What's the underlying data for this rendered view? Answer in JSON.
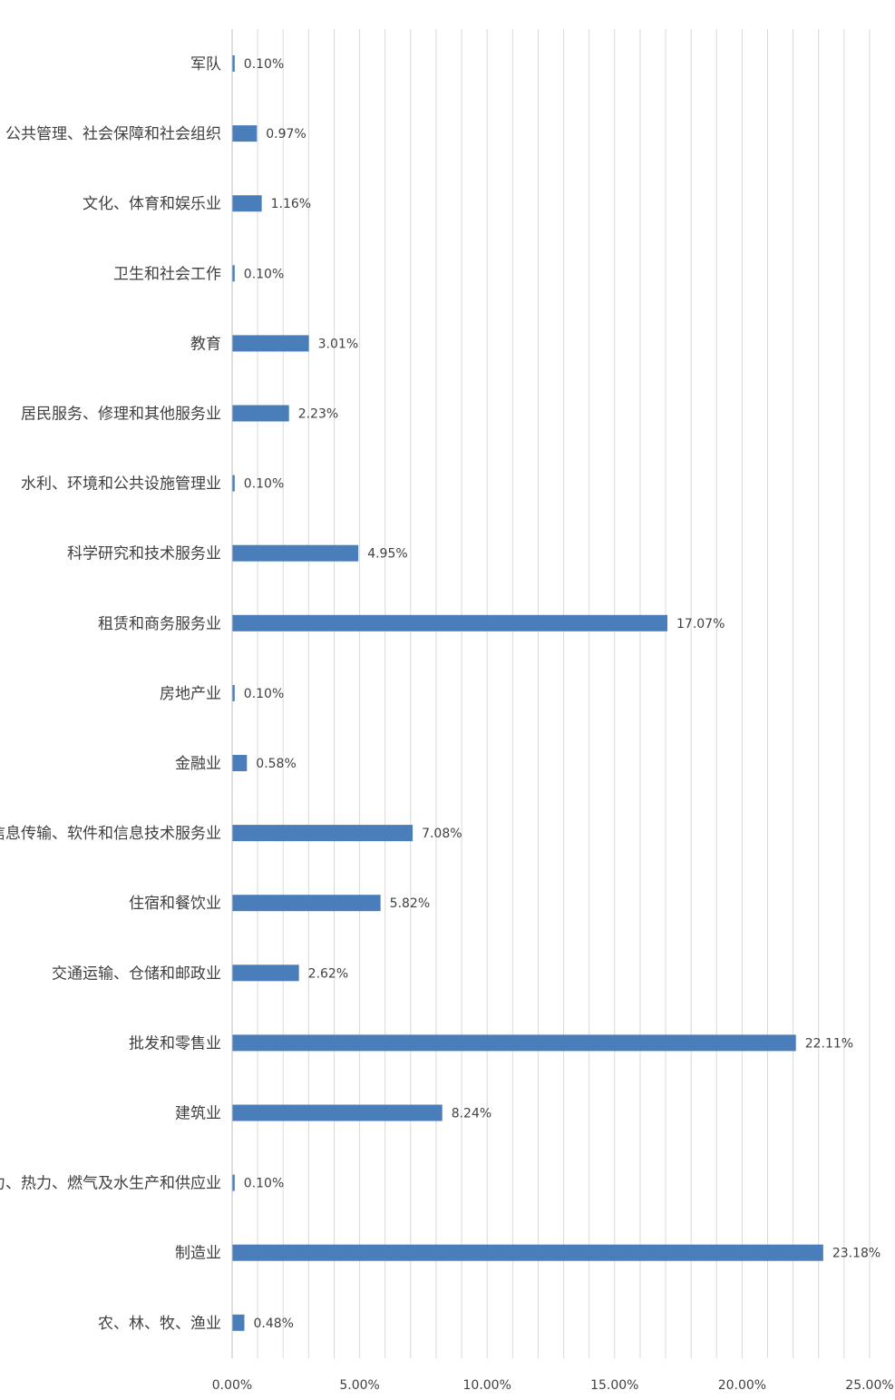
{
  "chart_data": {
    "type": "bar",
    "orientation": "horizontal",
    "categories": [
      "军队",
      "公共管理、社会保障和社会组织",
      "文化、体育和娱乐业",
      "卫生和社会工作",
      "教育",
      "居民服务、修理和其他服务业",
      "水利、环境和公共设施管理业",
      "科学研究和技术服务业",
      "租赁和商务服务业",
      "房地产业",
      "金融业",
      "信息传输、软件和信息技术服务业",
      "住宿和餐饮业",
      "交通运输、仓储和邮政业",
      "批发和零售业",
      "建筑业",
      "电力、热力、燃气及水生产和供应业",
      "制造业",
      "农、林、牧、渔业"
    ],
    "values": [
      0.1,
      0.97,
      1.16,
      0.1,
      3.01,
      2.23,
      0.1,
      4.95,
      17.07,
      0.1,
      0.58,
      7.08,
      5.82,
      2.62,
      22.11,
      8.24,
      0.1,
      23.18,
      0.48
    ],
    "data_labels": [
      "0.10%",
      "0.97%",
      "1.16%",
      "0.10%",
      "3.01%",
      "2.23%",
      "0.10%",
      "4.95%",
      "17.07%",
      "0.10%",
      "0.58%",
      "7.08%",
      "5.82%",
      "2.62%",
      "22.11%",
      "8.24%",
      "0.10%",
      "23.18%",
      "0.48%"
    ],
    "x_ticks": [
      0,
      5,
      10,
      15,
      20,
      25
    ],
    "x_tick_labels": [
      "0.00%",
      "5.00%",
      "10.00%",
      "15.00%",
      "20.00%",
      "25.00%"
    ],
    "xlim": [
      0,
      25
    ],
    "title": "",
    "xlabel": "",
    "ylabel": "",
    "grid": "vertical",
    "legend": "none",
    "bar_color": "#4a7ebb",
    "grid_color": "#d9d9d9"
  }
}
